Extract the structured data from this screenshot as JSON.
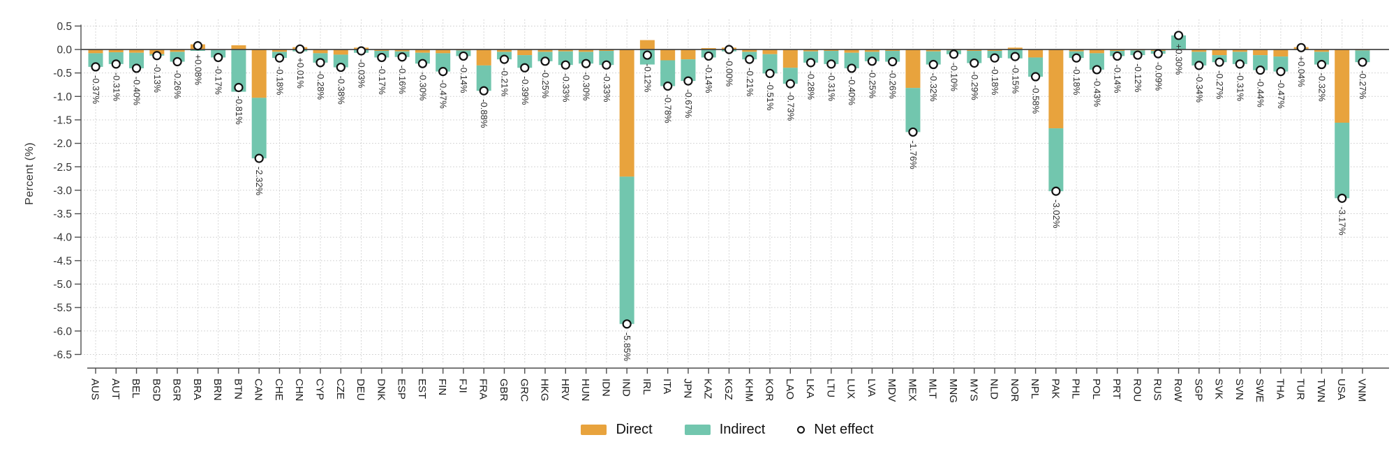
{
  "axis": {
    "y_title": "Percent (%)"
  },
  "legend": {
    "direct": "Direct",
    "indirect": "Indirect",
    "net": "Net effect"
  },
  "colors": {
    "direct": "#E8A33D",
    "indirect": "#72C6AE",
    "grid": "#c9c9c9",
    "axis": "#4d4d4d",
    "net_marker_stroke": "#111111",
    "net_marker_fill": "#ffffff"
  },
  "chart_data": {
    "type": "bar",
    "stacked": true,
    "title": "",
    "xlabel": "",
    "ylabel": "Percent (%)",
    "ylim": [
      -6.5,
      0.5
    ],
    "ytick_step": 0.5,
    "grid": "dotted",
    "legend_position": "bottom",
    "yticks": [
      "0.5",
      "0.0",
      "-0.5",
      "-1.0",
      "-1.5",
      "-2.0",
      "-2.5",
      "-3.0",
      "-3.5",
      "-4.0",
      "-4.5",
      "-5.0",
      "-5.5",
      "-6.0",
      "-6.5"
    ],
    "categories": [
      "AUS",
      "AUT",
      "BEL",
      "BGD",
      "BGR",
      "BRA",
      "BRN",
      "BTN",
      "CAN",
      "CHE",
      "CHN",
      "CYP",
      "CZE",
      "DEU",
      "DNK",
      "ESP",
      "EST",
      "FIN",
      "FJI",
      "FRA",
      "GBR",
      "GRC",
      "HKG",
      "HRV",
      "HUN",
      "IDN",
      "IND",
      "IRL",
      "ITA",
      "JPN",
      "KAZ",
      "KGZ",
      "KHM",
      "KOR",
      "LAO",
      "LKA",
      "LTU",
      "LUX",
      "LVA",
      "MDV",
      "MEX",
      "MLT",
      "MNG",
      "MYS",
      "NLD",
      "NOR",
      "NPL",
      "PAK",
      "PHL",
      "POL",
      "PRT",
      "ROU",
      "RUS",
      "RoW",
      "SGP",
      "SVK",
      "SVN",
      "SWE",
      "THA",
      "TUR",
      "TWN",
      "USA",
      "VNM"
    ],
    "series": [
      {
        "name": "Direct",
        "color": "#E8A33D",
        "values": [
          -0.08,
          -0.06,
          -0.07,
          -0.1,
          -0.05,
          0.11,
          -0.01,
          0.09,
          -1.03,
          -0.05,
          0.05,
          -0.08,
          -0.11,
          0.04,
          -0.03,
          -0.04,
          -0.07,
          -0.08,
          -0.02,
          -0.34,
          -0.05,
          -0.12,
          -0.05,
          -0.04,
          -0.05,
          -0.03,
          -2.71,
          0.2,
          -0.23,
          -0.21,
          0.03,
          0.04,
          -0.05,
          -0.1,
          -0.39,
          -0.04,
          -0.03,
          -0.07,
          -0.05,
          -0.03,
          -0.82,
          -0.04,
          -0.02,
          -0.03,
          -0.03,
          0.04,
          -0.17,
          -1.68,
          -0.04,
          -0.08,
          -0.03,
          -0.02,
          -0.03,
          0.0,
          -0.05,
          -0.12,
          -0.05,
          -0.12,
          -0.15,
          0.05,
          -0.05,
          -1.56,
          -0.02
        ]
      },
      {
        "name": "Indirect",
        "color": "#72C6AE",
        "values": [
          -0.29,
          -0.25,
          -0.33,
          -0.03,
          -0.21,
          -0.03,
          -0.16,
          -0.9,
          -1.29,
          -0.13,
          -0.04,
          -0.2,
          -0.27,
          -0.07,
          -0.14,
          -0.12,
          -0.23,
          -0.39,
          -0.12,
          -0.54,
          -0.16,
          -0.27,
          -0.2,
          -0.29,
          -0.25,
          -0.3,
          -3.14,
          -0.32,
          -0.55,
          -0.46,
          -0.17,
          -0.04,
          -0.16,
          -0.41,
          -0.34,
          -0.24,
          -0.28,
          -0.33,
          -0.2,
          -0.23,
          -0.94,
          -0.28,
          -0.08,
          -0.26,
          -0.15,
          -0.19,
          -0.41,
          -1.34,
          -0.14,
          -0.35,
          -0.11,
          -0.1,
          -0.06,
          0.3,
          -0.29,
          -0.15,
          -0.26,
          -0.32,
          -0.32,
          -0.01,
          -0.27,
          -1.61,
          -0.25
        ]
      }
    ],
    "net": {
      "name": "Net effect",
      "marker": "open-circle",
      "values": [
        -0.37,
        -0.31,
        -0.4,
        -0.13,
        -0.26,
        0.08,
        -0.17,
        -0.81,
        -2.32,
        -0.18,
        0.01,
        -0.28,
        -0.38,
        -0.03,
        -0.17,
        -0.16,
        -0.3,
        -0.47,
        -0.14,
        -0.88,
        -0.21,
        -0.39,
        -0.25,
        -0.33,
        -0.3,
        -0.33,
        -5.85,
        -0.12,
        -0.78,
        -0.67,
        -0.14,
        0.0,
        -0.21,
        -0.51,
        -0.73,
        -0.28,
        -0.31,
        -0.4,
        -0.25,
        -0.26,
        -1.76,
        -0.32,
        -0.1,
        -0.29,
        -0.18,
        -0.15,
        -0.58,
        -3.02,
        -0.18,
        -0.43,
        -0.14,
        -0.12,
        -0.09,
        0.3,
        -0.34,
        -0.27,
        -0.31,
        -0.44,
        -0.47,
        0.04,
        -0.32,
        -3.17,
        -0.27
      ],
      "labels": [
        "-0.37%",
        "-0.31%",
        "-0.40%",
        "-0.13%",
        "-0.26%",
        "+0.08%",
        "-0.17%",
        "-0.81%",
        "-2.32%",
        "-0.18%",
        "+0.01%",
        "-0.28%",
        "-0.38%",
        "-0.03%",
        "-0.17%",
        "-0.16%",
        "-0.30%",
        "-0.47%",
        "-0.14%",
        "-0.88%",
        "-0.21%",
        "-0.39%",
        "-0.25%",
        "-0.33%",
        "-0.30%",
        "-0.33%",
        "-5.85%",
        "-0.12%",
        "-0.78%",
        "-0.67%",
        "-0.14%",
        "-0.00%",
        "-0.21%",
        "-0.51%",
        "-0.73%",
        "-0.28%",
        "-0.31%",
        "-0.40%",
        "-0.25%",
        "-0.26%",
        "-1.76%",
        "-0.32%",
        "-0.10%",
        "-0.29%",
        "-0.18%",
        "-0.15%",
        "-0.58%",
        "-3.02%",
        "-0.18%",
        "-0.43%",
        "-0.14%",
        "-0.12%",
        "-0.09%",
        "+0.30%",
        "-0.34%",
        "-0.27%",
        "-0.31%",
        "-0.44%",
        "-0.47%",
        "+0.04%",
        "-0.32%",
        "-3.17%",
        "-0.27%"
      ]
    }
  }
}
